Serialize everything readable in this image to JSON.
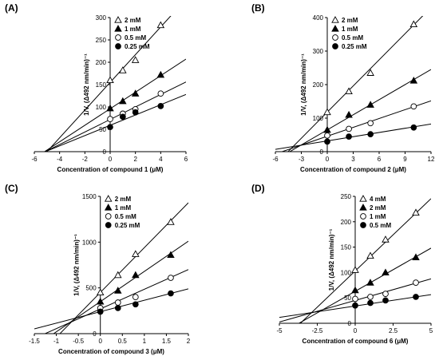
{
  "figure": {
    "panels": [
      {
        "label": "(A)",
        "xlabel": "Concentration of compound 1 (μM)",
        "ylabel": "1/V, (Δ492 nm/min)⁻¹",
        "xlim": [
          -6,
          6
        ],
        "ylim": [
          0,
          300
        ],
        "xticks": [
          -6,
          -4,
          -2,
          0,
          2,
          4,
          6
        ],
        "yticks": [
          0,
          50,
          100,
          150,
          200,
          250,
          300
        ]
      },
      {
        "label": "(B)",
        "xlabel": "Concentration of compound 2 (μM)",
        "ylabel": "1/V, (Δ492 nm/min)⁻¹",
        "xlim": [
          -6,
          12
        ],
        "ylim": [
          0,
          400
        ],
        "xticks": [
          -6,
          -3,
          0,
          3,
          6,
          9,
          12
        ],
        "yticks": [
          0,
          100,
          200,
          300,
          400
        ]
      },
      {
        "label": "(C)",
        "xlabel": "Concentration of compound 3 (μM)",
        "ylabel": "1/V, (Δ492 nm/min)⁻¹",
        "xlim": [
          -1.5,
          2
        ],
        "ylim": [
          0,
          1500
        ],
        "xticks": [
          -1.5,
          -1,
          -0.5,
          0,
          0.5,
          1,
          1.5,
          2
        ],
        "yticks": [
          0,
          500,
          1000,
          1500
        ]
      },
      {
        "label": "(D)",
        "xlabel": "Concentration of compound 6 (μM)",
        "ylabel": "1/V, (Δ492 nm/min)⁻¹",
        "xlim": [
          -5,
          5
        ],
        "ylim": [
          0,
          250
        ],
        "xticks": [
          -5,
          -2.5,
          0,
          2.5,
          5
        ],
        "yticks": [
          0,
          50,
          100,
          150,
          200,
          250
        ]
      }
    ]
  },
  "chart_data": [
    {
      "type": "scatter",
      "title": "(A)",
      "xlabel": "Concentration of compound 1 (μM)",
      "ylabel": "1/V, (Δ492 nm/min)⁻¹",
      "xlim": [
        -6,
        6
      ],
      "ylim": [
        0,
        300
      ],
      "grid": false,
      "legend": "top-left",
      "series": [
        {
          "name": "2 mM",
          "marker": "triangle-open",
          "x": [
            0,
            1,
            2,
            4
          ],
          "y": [
            160,
            182,
            205,
            283
          ],
          "fit": {
            "slope": 31,
            "intercept": 155
          }
        },
        {
          "name": "1 mM",
          "marker": "triangle-filled",
          "x": [
            0,
            1,
            2,
            4
          ],
          "y": [
            97,
            113,
            130,
            172
          ],
          "fit": {
            "slope": 18.5,
            "intercept": 96
          }
        },
        {
          "name": "0.5 mM",
          "marker": "circle-open",
          "x": [
            0,
            1,
            2,
            4
          ],
          "y": [
            73,
            85,
            95,
            130
          ],
          "fit": {
            "slope": 14,
            "intercept": 72
          }
        },
        {
          "name": "0.25 mM",
          "marker": "circle-filled",
          "x": [
            0,
            1,
            2,
            4
          ],
          "y": [
            55,
            78,
            88,
            102
          ],
          "fit": {
            "slope": 11.5,
            "intercept": 59
          }
        }
      ]
    },
    {
      "type": "scatter",
      "title": "(B)",
      "xlabel": "Concentration of compound 2 (μM)",
      "ylabel": "1/V, (Δ492 nm/min)⁻¹",
      "xlim": [
        -6,
        12
      ],
      "ylim": [
        0,
        400
      ],
      "grid": false,
      "legend": "top-left",
      "series": [
        {
          "name": "2 mM",
          "marker": "triangle-open",
          "x": [
            0,
            2.5,
            5,
            10
          ],
          "y": [
            118,
            180,
            235,
            380
          ],
          "fit": {
            "slope": 26,
            "intercept": 118
          }
        },
        {
          "name": "1 mM",
          "marker": "triangle-filled",
          "x": [
            0,
            2.5,
            5,
            10
          ],
          "y": [
            65,
            110,
            140,
            212
          ],
          "fit": {
            "slope": 15,
            "intercept": 65
          }
        },
        {
          "name": "0.5 mM",
          "marker": "circle-open",
          "x": [
            0,
            2.5,
            5,
            10
          ],
          "y": [
            48,
            68,
            85,
            135
          ],
          "fit": {
            "slope": 8.8,
            "intercept": 46
          }
        },
        {
          "name": "0.25 mM",
          "marker": "circle-filled",
          "x": [
            0,
            2.5,
            5,
            10
          ],
          "y": [
            30,
            45,
            52,
            72
          ],
          "fit": {
            "slope": 4.2,
            "intercept": 32
          }
        }
      ]
    },
    {
      "type": "scatter",
      "title": "(C)",
      "xlabel": "Concentration of compound 3 (μM)",
      "ylabel": "1/V, (Δ492 nm/min)⁻¹",
      "xlim": [
        -1.5,
        2
      ],
      "ylim": [
        0,
        1500
      ],
      "grid": false,
      "legend": "top-left",
      "series": [
        {
          "name": "2 mM",
          "marker": "triangle-open",
          "x": [
            0,
            0.4,
            0.8,
            1.6
          ],
          "y": [
            450,
            640,
            870,
            1220
          ],
          "fit": {
            "slope": 490,
            "intercept": 450
          }
        },
        {
          "name": "1 mM",
          "marker": "triangle-filled",
          "x": [
            0,
            0.4,
            0.8,
            1.6
          ],
          "y": [
            350,
            470,
            640,
            860
          ],
          "fit": {
            "slope": 330,
            "intercept": 350
          }
        },
        {
          "name": "0.5 mM",
          "marker": "circle-open",
          "x": [
            0,
            0.4,
            0.8,
            1.6
          ],
          "y": [
            280,
            340,
            400,
            610
          ],
          "fit": {
            "slope": 215,
            "intercept": 270
          }
        },
        {
          "name": "0.25 mM",
          "marker": "circle-filled",
          "x": [
            0,
            0.4,
            0.8,
            1.6
          ],
          "y": [
            240,
            280,
            320,
            440
          ],
          "fit": {
            "slope": 125,
            "intercept": 240
          }
        }
      ]
    },
    {
      "type": "scatter",
      "title": "(D)",
      "xlabel": "Concentration of compound 6 (μM)",
      "ylabel": "1/V, (Δ492 nm/min)⁻¹",
      "xlim": [
        -5,
        5
      ],
      "ylim": [
        0,
        250
      ],
      "grid": false,
      "legend": "top-left",
      "series": [
        {
          "name": "4 mM",
          "marker": "triangle-open",
          "x": [
            0,
            1,
            2,
            4
          ],
          "y": [
            105,
            133,
            165,
            218
          ],
          "fit": {
            "slope": 28.5,
            "intercept": 103
          }
        },
        {
          "name": "2 mM",
          "marker": "triangle-filled",
          "x": [
            0,
            1,
            2,
            4
          ],
          "y": [
            65,
            80,
            100,
            130
          ],
          "fit": {
            "slope": 17,
            "intercept": 63
          }
        },
        {
          "name": "1 mM",
          "marker": "circle-open",
          "x": [
            0,
            1,
            2,
            4
          ],
          "y": [
            48,
            52,
            58,
            80
          ],
          "fit": {
            "slope": 8.5,
            "intercept": 45
          }
        },
        {
          "name": "0.5 mM",
          "marker": "circle-filled",
          "x": [
            0,
            1,
            2,
            4
          ],
          "y": [
            35,
            40,
            45,
            52
          ],
          "fit": {
            "slope": 4.5,
            "intercept": 34
          }
        }
      ]
    }
  ]
}
